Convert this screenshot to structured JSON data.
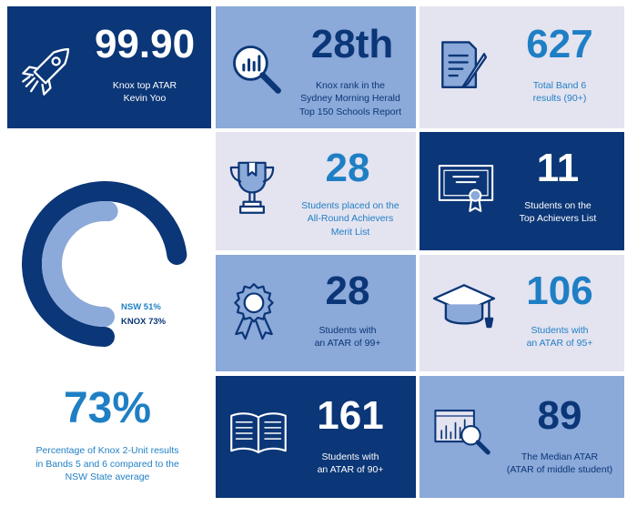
{
  "colors": {
    "navy": "#0b3677",
    "mid": "#8ba9d9",
    "light": "#e4e3f0",
    "accent": "#1f7fc4"
  },
  "tiles": [
    {
      "id": "atar",
      "number": "99.90",
      "label": [
        "Knox top ATAR",
        "Kevin Yoo"
      ],
      "icon": "rocket-icon"
    },
    {
      "id": "rank",
      "number": "28th",
      "label": [
        "Knox rank in the",
        "Sydney Morning Herald",
        "Top 150 Schools Report"
      ],
      "icon": "magnifier-chart-icon"
    },
    {
      "id": "band6",
      "number": "627",
      "label": [
        "Total Band 6",
        "results (90+)"
      ],
      "icon": "document-pen-icon"
    },
    {
      "id": "allround",
      "number": "28",
      "label": [
        "Students placed on the",
        "All-Round Achievers",
        "Merit List"
      ],
      "icon": "trophy-icon"
    },
    {
      "id": "topach",
      "number": "11",
      "label": [
        "Students on the",
        "Top Achievers List"
      ],
      "icon": "certificate-icon"
    },
    {
      "id": "atar99",
      "number": "28",
      "label": [
        "Students with",
        "an ATAR of 99+"
      ],
      "icon": "rosette-icon"
    },
    {
      "id": "atar95",
      "number": "106",
      "label": [
        "Students with",
        "an ATAR of 95+"
      ],
      "icon": "graduation-cap-icon"
    },
    {
      "id": "atar90",
      "number": "161",
      "label": [
        "Students with",
        "an ATAR of 90+"
      ],
      "icon": "open-book-icon"
    },
    {
      "id": "median",
      "number": "89",
      "label": [
        "The Median ATAR",
        "(ATAR of middle student)"
      ],
      "icon": "analytics-magnifier-icon"
    }
  ],
  "chart_data": {
    "type": "pie",
    "series": [
      {
        "name": "NSW",
        "value": 51,
        "label": "NSW 51%",
        "color": "#8ba9d9"
      },
      {
        "name": "KNOX",
        "value": 73,
        "label": "KNOX 73%",
        "color": "#0b3677"
      }
    ],
    "max": 100,
    "headline": "73%",
    "caption": [
      "Percentage of Knox 2-Unit results",
      "in Bands 5 and 6 compared to the",
      "NSW State average"
    ]
  }
}
